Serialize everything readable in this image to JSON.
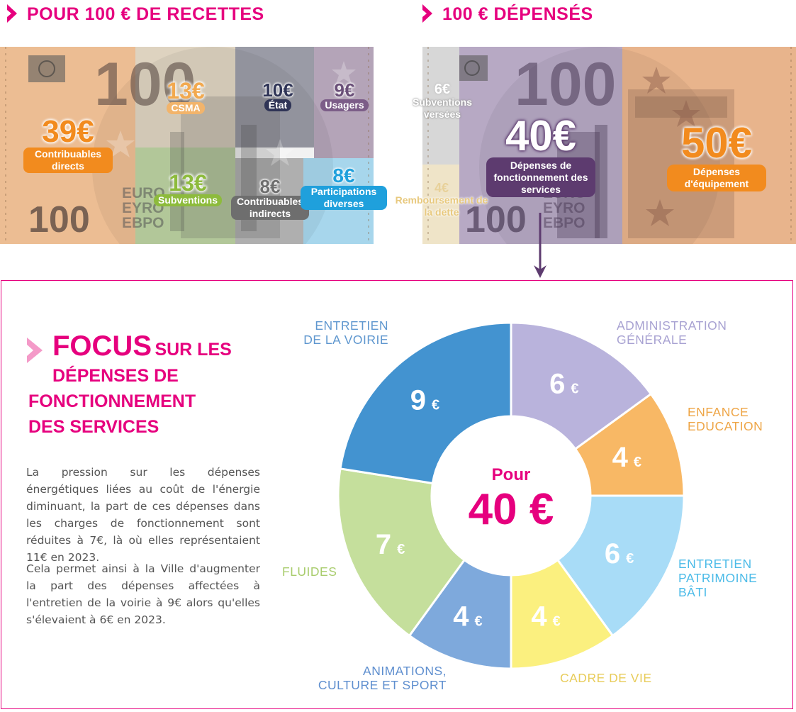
{
  "headers": {
    "recettes": "POUR 100 € DE RECETTES",
    "depenses": "100 € DÉPENSÉS"
  },
  "banknote": {
    "big_number": "100",
    "euro_lines": [
      "EURO",
      "EYRO",
      "EBPO"
    ]
  },
  "recettes": [
    {
      "amount": "39€",
      "label": "Contribuables directs",
      "color": "#f28b1e"
    },
    {
      "amount": "13€",
      "label": "CSMA",
      "color": "#f2b46b"
    },
    {
      "amount": "10€",
      "label": "État",
      "color": "#2f3456"
    },
    {
      "amount": "9€",
      "label": "Usagers",
      "color": "#7c5d88"
    },
    {
      "amount": "13€",
      "label": "Subventions",
      "color": "#8dbb3c"
    },
    {
      "amount": "8€",
      "label": "Contribuables indirects",
      "color": "#6e6e6e"
    },
    {
      "amount": "8€",
      "label": "Participations diverses",
      "color": "#1fa0dc"
    }
  ],
  "depenses": [
    {
      "amount": "6€",
      "label": "Subventions versées",
      "color": "#c9c9c9"
    },
    {
      "amount": "4€",
      "label": "Remboursement de la dette",
      "color": "#ead8a8"
    },
    {
      "amount": "40€",
      "label": "Dépenses de fonctionnement des services",
      "color": "#5d3b6f"
    },
    {
      "amount": "50€",
      "label": "Dépenses d'équipement",
      "color": "#f28b1e"
    }
  ],
  "focus": {
    "title_big": "FOCUS",
    "title_rest": "SUR LES",
    "title_line2": "DÉPENSES DE",
    "title_line3": "FONCTIONNEMENT",
    "title_line4": "DES SERVICES",
    "paragraph1": "La pression sur les dépenses énergétiques liées au coût de l'énergie diminuant, la part de ces dépenses dans les charges de fonctionnement sont réduites à 7€, là où elles représentaient 11€ en 2023.",
    "paragraph2": "Cela permet ainsi à la Ville d'augmenter la part des dépenses affectées à l'entretien de la voirie à 9€ alors qu'elles s'élevaient à 6€ en 2023."
  },
  "chart_data": {
    "type": "pie",
    "center_label_top": "Pour",
    "center_label_value": "40 €",
    "currency": "€",
    "total": 40,
    "slices": [
      {
        "name": "ADMINISTRATION GÉNÉRALE",
        "value": 6,
        "color": "#b9b3dc"
      },
      {
        "name": "ENFANCE EDUCATION",
        "value": 4,
        "color": "#f8b865"
      },
      {
        "name": "ENTRETIEN PATRIMOINE BÂTI",
        "value": 6,
        "color": "#a8dcf7"
      },
      {
        "name": "CADRE DE VIE",
        "value": 4,
        "color": "#fbf07f"
      },
      {
        "name": "ANIMATIONS, CULTURE ET SPORT",
        "value": 4,
        "color": "#7ea9dc"
      },
      {
        "name": "FLUIDES",
        "value": 7,
        "color": "#c5df9c"
      },
      {
        "name": "ENTRETIEN DE LA VOIRIE",
        "value": 9,
        "color": "#4393d0"
      }
    ],
    "label_colors": {
      "ADMINISTRATION GÉNÉRALE": "#a8a2d2",
      "ENFANCE EDUCATION": "#eea546",
      "ENTRETIEN PATRIMOINE BÂTI": "#4bbbe8",
      "CADRE DE VIE": "#e8cc5a",
      "ANIMATIONS, CULTURE ET SPORT": "#5f8fcf",
      "FLUIDES": "#a8cc6c",
      "ENTRETIEN DE LA VOIRIE": "#5f97cf"
    }
  }
}
